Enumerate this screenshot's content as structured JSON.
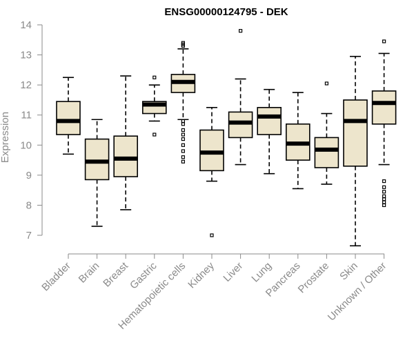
{
  "chart_data": {
    "type": "boxplot",
    "title": "ENSG00000124795 - DEK",
    "ylabel": "Expression",
    "ylim": [
      6.4,
      14.3
    ],
    "yticks": [
      7,
      8,
      9,
      10,
      11,
      12,
      13,
      14
    ],
    "box_fill": "#ede5cc",
    "categories": [
      "Bladder",
      "Brain",
      "Breast",
      "Gastric",
      "Hematopoietic cells",
      "Kidney",
      "Liver",
      "Lung",
      "Pancreas",
      "Prostate",
      "Skin",
      "Unknown / Other"
    ],
    "boxes": [
      {
        "category": "Bladder",
        "whisker_low": 9.7,
        "q1": 10.35,
        "median": 10.8,
        "q3": 11.45,
        "whisker_high": 12.25,
        "outliers": []
      },
      {
        "category": "Brain",
        "whisker_low": 7.3,
        "q1": 8.85,
        "median": 9.45,
        "q3": 10.2,
        "whisker_high": 10.85,
        "outliers": []
      },
      {
        "category": "Breast",
        "whisker_low": 7.85,
        "q1": 8.95,
        "median": 9.55,
        "q3": 10.3,
        "whisker_high": 12.3,
        "outliers": []
      },
      {
        "category": "Gastric",
        "whisker_low": 10.8,
        "q1": 11.05,
        "median": 11.35,
        "q3": 11.45,
        "whisker_high": 12.0,
        "outliers": [
          12.25,
          10.35
        ]
      },
      {
        "category": "Hematopoietic cells",
        "whisker_low": 10.85,
        "q1": 11.75,
        "median": 12.1,
        "q3": 12.35,
        "whisker_high": 13.2,
        "outliers": [
          13.4,
          13.35,
          13.3,
          10.8,
          10.7,
          10.5,
          10.35,
          10.2,
          10.0,
          9.8,
          9.6,
          9.45
        ]
      },
      {
        "category": "Kidney",
        "whisker_low": 8.8,
        "q1": 9.15,
        "median": 9.75,
        "q3": 10.5,
        "whisker_high": 11.25,
        "outliers": [
          7.0
        ]
      },
      {
        "category": "Liver",
        "whisker_low": 9.35,
        "q1": 10.25,
        "median": 10.75,
        "q3": 11.1,
        "whisker_high": 12.2,
        "outliers": [
          13.8
        ]
      },
      {
        "category": "Lung",
        "whisker_low": 9.05,
        "q1": 10.35,
        "median": 10.95,
        "q3": 11.25,
        "whisker_high": 11.85,
        "outliers": []
      },
      {
        "category": "Pancreas",
        "whisker_low": 8.55,
        "q1": 9.5,
        "median": 10.05,
        "q3": 10.7,
        "whisker_high": 11.75,
        "outliers": []
      },
      {
        "category": "Prostate",
        "whisker_low": 8.7,
        "q1": 9.25,
        "median": 9.85,
        "q3": 10.25,
        "whisker_high": 11.05,
        "outliers": [
          12.05
        ]
      },
      {
        "category": "Skin",
        "whisker_low": 6.65,
        "q1": 9.3,
        "median": 10.8,
        "q3": 11.5,
        "whisker_high": 12.95,
        "outliers": []
      },
      {
        "category": "Unknown / Other",
        "whisker_low": 9.35,
        "q1": 10.7,
        "median": 11.4,
        "q3": 11.8,
        "whisker_high": 13.05,
        "outliers": [
          13.45,
          8.8,
          8.6,
          8.45,
          8.3,
          8.2,
          8.1,
          8.0
        ]
      }
    ]
  }
}
